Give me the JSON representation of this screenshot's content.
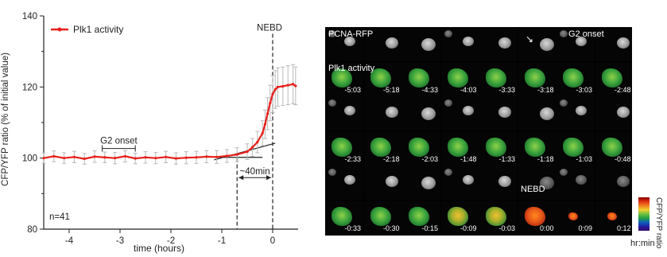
{
  "chart_data": {
    "type": "line",
    "ylabel": "CFP/YFP ratio (% of initial value)",
    "xlabel": "time (hours)",
    "xlim": [
      -4.5,
      0.5
    ],
    "ylim": [
      80,
      140
    ],
    "x_ticks": [
      -4,
      -3,
      -2,
      -1,
      0
    ],
    "y_ticks": [
      80,
      100,
      120,
      140
    ],
    "legend": "top-left",
    "series": [
      {
        "name": "Plk1 activity",
        "color": "#e8201a",
        "x": [
          -4.5,
          -4.3,
          -4.1,
          -3.9,
          -3.7,
          -3.5,
          -3.3,
          -3.1,
          -2.9,
          -2.7,
          -2.5,
          -2.3,
          -2.1,
          -1.9,
          -1.7,
          -1.5,
          -1.3,
          -1.1,
          -0.9,
          -0.7,
          -0.5,
          -0.4,
          -0.3,
          -0.2,
          -0.15,
          -0.1,
          -0.05,
          0,
          0.05,
          0.1,
          0.2,
          0.3,
          0.4,
          0.45
        ],
        "y": [
          100,
          100.5,
          100,
          100.3,
          99.8,
          100.4,
          100.2,
          100,
          100.5,
          99.9,
          100.2,
          100,
          100.3,
          99.9,
          100.1,
          100.2,
          100.4,
          100.3,
          100.6,
          101,
          101.8,
          103,
          104.5,
          107,
          109.5,
          112.5,
          115.5,
          118,
          119.3,
          120,
          120.2,
          120.5,
          120.8,
          120.3
        ],
        "err": [
          1.5,
          1.5,
          1.5,
          1.6,
          1.5,
          1.6,
          1.5,
          1.6,
          1.6,
          1.5,
          1.6,
          1.6,
          1.6,
          1.6,
          1.7,
          1.7,
          1.7,
          1.8,
          1.8,
          1.9,
          2.2,
          2.5,
          3,
          3.5,
          4,
          4.5,
          5,
          5.2,
          5.3,
          5.4,
          5.4,
          5.5,
          5.5,
          5.3
        ]
      }
    ],
    "annotations": {
      "g2_onset": {
        "text": "G2 onset",
        "x_start": -3.35,
        "x_end": -2.7,
        "y": 102.7
      },
      "nebd": {
        "text": "NEBD",
        "x": 0
      },
      "interval": {
        "text": "~40min",
        "x_start": -0.7,
        "x_end": 0
      },
      "fit_baseline": {
        "x": [
          -1.15,
          -0.2
        ],
        "y": [
          100.2,
          100.2
        ]
      },
      "fit_slope": {
        "x": [
          -1.15,
          0.05
        ],
        "y": [
          99.5,
          104.2
        ]
      },
      "n_label": "n=41"
    }
  },
  "panel": {
    "labels": {
      "pcna": "PCNA-RFP",
      "g2_onset": "G2 onset",
      "plk1": "Plk1 activity",
      "nebd": "NEBD"
    },
    "times": [
      [
        "-5:03",
        "-5:18",
        "-4:33",
        "-4:03",
        "-3:33",
        "-3:18",
        "-3:03",
        "-2:48"
      ],
      [
        "-2:33",
        "-2:18",
        "-2:03",
        "-1:48",
        "-1:33",
        "-1:18",
        "-1:03",
        "-0:48"
      ],
      [
        "-0:33",
        "-0:30",
        "-0:15",
        "-0:09",
        "-0:03",
        "0:00",
        "0:09",
        "0:12"
      ]
    ],
    "colorbar_label": "CFP/YFP ratio",
    "time_unit": "hr:min"
  }
}
